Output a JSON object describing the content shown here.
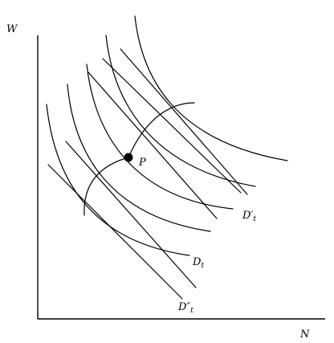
{
  "axes": {
    "y_label": "W",
    "x_label": "N"
  },
  "point": {
    "label": "P"
  },
  "curves": [
    {
      "main": "D",
      "prime": "′",
      "sub": "t"
    },
    {
      "main": "D",
      "prime": "",
      "sub": "t"
    },
    {
      "main": "D",
      "prime": "″",
      "sub": "t"
    }
  ]
}
